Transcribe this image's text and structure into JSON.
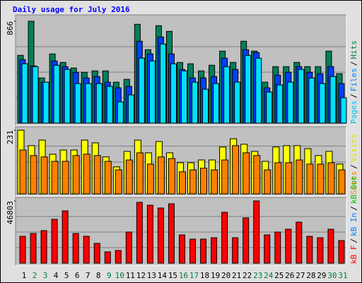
{
  "chart_data": {
    "type": "bar",
    "title": "Daily usage for July 2016",
    "legend_separator": "/",
    "categories": [
      "1",
      "2",
      "3",
      "4",
      "5",
      "6",
      "7",
      "8",
      "9",
      "10",
      "11",
      "12",
      "13",
      "14",
      "15",
      "16",
      "17",
      "18",
      "19",
      "20",
      "21",
      "22",
      "23",
      "24",
      "25",
      "26",
      "27",
      "28",
      "29",
      "30",
      "31"
    ],
    "category_colors": [
      "#000000",
      "#008040",
      "#008040",
      "#000000",
      "#000000",
      "#000000",
      "#000000",
      "#000000",
      "#008040",
      "#008040",
      "#000000",
      "#000000",
      "#000000",
      "#000000",
      "#000000",
      "#008040",
      "#008040",
      "#000000",
      "#000000",
      "#000000",
      "#000000",
      "#000000",
      "#008040",
      "#008040",
      "#000000",
      "#000000",
      "#000000",
      "#000000",
      "#000000",
      "#008040",
      "#008040"
    ],
    "panels": [
      {
        "ylim": [
          0,
          866
        ],
        "yticks": [
          866
        ],
        "series": [
          {
            "name": "Hits",
            "color": "#00805c",
            "label_color": "#008040",
            "values": [
              576,
              866,
              384,
              588,
              516,
              468,
              432,
              444,
              444,
              348,
              372,
              840,
              624,
              828,
              780,
              516,
              504,
              444,
              492,
              612,
              516,
              696,
              612,
              348,
              480,
              480,
              516,
              480,
              480,
              612,
              420
            ]
          },
          {
            "name": "Files",
            "color": "#0040ff",
            "label_color": "#0080ff",
            "values": [
              540,
              486,
              348,
              528,
              480,
              432,
              384,
              396,
              348,
              300,
              312,
              696,
              588,
              732,
              588,
              456,
              384,
              384,
              396,
              552,
              456,
              624,
              600,
              300,
              408,
              432,
              480,
              432,
              420,
              480,
              336
            ]
          },
          {
            "name": "Pages",
            "color": "#00e0ff",
            "label_color": "#00c0ff",
            "values": [
              504,
              480,
              348,
              492,
              456,
              336,
              336,
              336,
              312,
              180,
              240,
              552,
              528,
              672,
              504,
              444,
              348,
              288,
              336,
              480,
              348,
              576,
              552,
              264,
              324,
              348,
              456,
              384,
              336,
              396,
              216
            ]
          }
        ]
      },
      {
        "ylim": [
          0,
          231
        ],
        "yticks": [
          231
        ],
        "series": [
          {
            "name": "Visits",
            "color": "#ffff00",
            "label_color": "#e0e000",
            "values": [
              231,
              175,
              195,
              144,
              159,
              159,
              195,
              185,
              134,
              98,
              154,
              195,
              149,
              190,
              149,
              113,
              113,
              123,
              123,
              170,
              200,
              180,
              154,
              118,
              170,
              175,
              175,
              164,
              139,
              154,
              108
            ]
          },
          {
            "name": "Sites",
            "color": "#ff8000",
            "label_color": "#ff8000",
            "values": [
              159,
              139,
              134,
              118,
              118,
              139,
              144,
              139,
              118,
              87,
              123,
              149,
              108,
              134,
              128,
              80,
              87,
              93,
              87,
              123,
              175,
              149,
              139,
              87,
              113,
              113,
              123,
              108,
              108,
              113,
              87
            ]
          }
        ]
      },
      {
        "ylim": [
          0,
          46803
        ],
        "yticks": [
          46803
        ],
        "series": [
          {
            "name": "kB Out",
            "color": "#00c000",
            "label_color": "#00c000",
            "values": [
              0,
              0,
              0,
              0,
              0,
              0,
              0,
              0,
              0,
              0,
              0,
              0,
              0,
              0,
              0,
              0,
              0,
              0,
              0,
              0,
              0,
              0,
              0,
              0,
              0,
              0,
              0,
              0,
              0,
              0,
              0
            ]
          },
          {
            "name": "kB In",
            "color": "#0080ff",
            "label_color": "#0080ff",
            "values": [
              0,
              0,
              0,
              0,
              0,
              0,
              0,
              0,
              0,
              0,
              0,
              0,
              0,
              0,
              0,
              0,
              0,
              0,
              0,
              0,
              0,
              0,
              0,
              0,
              0,
              0,
              0,
              0,
              0,
              0,
              0
            ]
          },
          {
            "name": "kB F",
            "color": "#ff0000",
            "label_color": "#ff0000",
            "values": [
              20213,
              22340,
              24468,
              32979,
              39362,
              22340,
              20213,
              14894,
              8511,
              9574,
              23404,
              45739,
              43611,
              41484,
              44675,
              21277,
              18085,
              18085,
              19149,
              38298,
              19149,
              34043,
              46803,
              21277,
              23404,
              25532,
              30851,
              20213,
              19149,
              25532,
              17021
            ]
          }
        ]
      }
    ]
  }
}
